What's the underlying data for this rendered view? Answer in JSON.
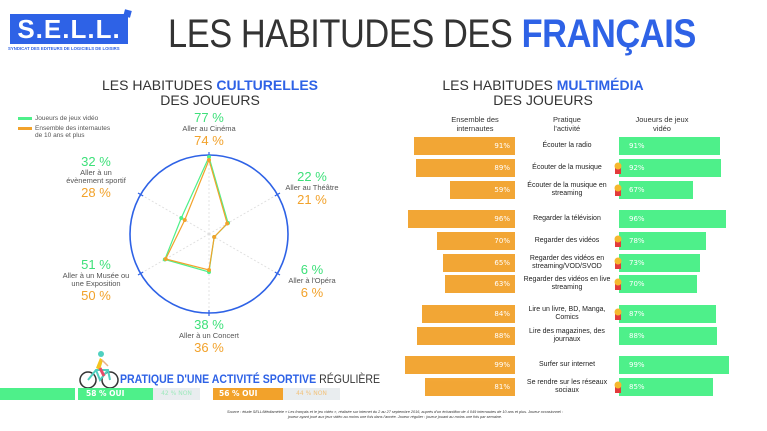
{
  "header": {
    "logo_text": "S.E.L.L.",
    "logo_subtitle": "SYNDICAT DES EDITEURS DE LOGICIELS DE LOISIRS",
    "title_plain": "LES HABITUDES DES ",
    "title_accent": "FRANÇAIS"
  },
  "colors": {
    "blue": "#2e62e6",
    "green": "#4ef08a",
    "orange": "#f2a22b",
    "gray": "#e9edef"
  },
  "culture": {
    "title_plain": "LES HABITUDES ",
    "title_accent": "CULTURELLES",
    "title_line2": "DES JOUEURS"
  },
  "multimedia": {
    "title_plain": "LES HABITUDES ",
    "title_accent": "MULTIMÉDIA",
    "title_line2": "DES JOUEURS",
    "col_left": "Ensemble des internautes",
    "col_mid": "Pratique l'activité",
    "col_right": "Joueurs de jeux vidéo"
  },
  "sport": {
    "title_accent": "PRATIQUE D'UNE ACTIVITÉ SPORTIVE",
    "title_plain": " RÉGULIÈRE",
    "gamers_yes": "58 % OUI",
    "gamers_no": "42 % NON",
    "all_yes": "56 % OUI",
    "all_no": "44 % NON",
    "icon": "cyclist-icon"
  },
  "source": "Source : étude SELL/Médiamétrie « Les français et le jeu vidéo », réalisée sur internet du 2 au 27 septembre 2016, auprès d'un échantillon de 4 049 internautes de 10 ans et plus. Joueur occasionnel : joueur ayant joué aux jeux vidéo au moins une fois dans l'année. Joueur régulier : joueur jouant au moins une fois par semaine.",
  "chart_data": [
    {
      "type": "radar",
      "legend": [
        "Joueurs de jeux vidéo",
        "Ensemble des internautes de 10 ans et plus"
      ],
      "legend_position": "top-left",
      "categories": [
        "Aller au Cinéma",
        "Aller au Théâtre",
        "Aller à l'Opéra",
        "Aller à un Concert",
        "Aller à un Musée ou une Exposition",
        "Aller à un évènement sportif"
      ],
      "series": [
        {
          "name": "Joueurs de jeux vidéo",
          "values": [
            77,
            22,
            6,
            38,
            51,
            32
          ],
          "labels": [
            "77 %",
            "22 %",
            "6 %",
            "38 %",
            "51 %",
            "32 %"
          ]
        },
        {
          "name": "Ensemble des internautes de 10 ans et plus",
          "values": [
            74,
            21,
            6,
            36,
            50,
            28
          ],
          "labels": [
            "74 %",
            "21 %",
            "6 %",
            "36 %",
            "50 %",
            "28 %"
          ]
        }
      ]
    },
    {
      "type": "bar",
      "orientation": "horizontal-butterfly",
      "categories": [
        "Écouter la radio",
        "Écouter de la musique",
        "Écouter de la musique en streaming",
        "Regarder la télévision",
        "Regarder des vidéos",
        "Regarder des vidéos en streaming/VOD/SVOD",
        "Regarder des vidéos en live streaming",
        "Lire un livre, BD, Manga, Comics",
        "Lire des magazines, des journaux",
        "Surfer sur internet",
        "Se rendre sur les réseaux sociaux"
      ],
      "series": [
        {
          "name": "Ensemble des internautes",
          "values": [
            91,
            89,
            59,
            96,
            70,
            65,
            63,
            84,
            88,
            99,
            81
          ]
        },
        {
          "name": "Joueurs de jeux vidéo",
          "values": [
            91,
            92,
            67,
            96,
            78,
            73,
            70,
            87,
            88,
            99,
            85
          ]
        }
      ],
      "medal_for_gamers": [
        false,
        true,
        true,
        false,
        true,
        true,
        true,
        true,
        false,
        false,
        true
      ]
    }
  ]
}
